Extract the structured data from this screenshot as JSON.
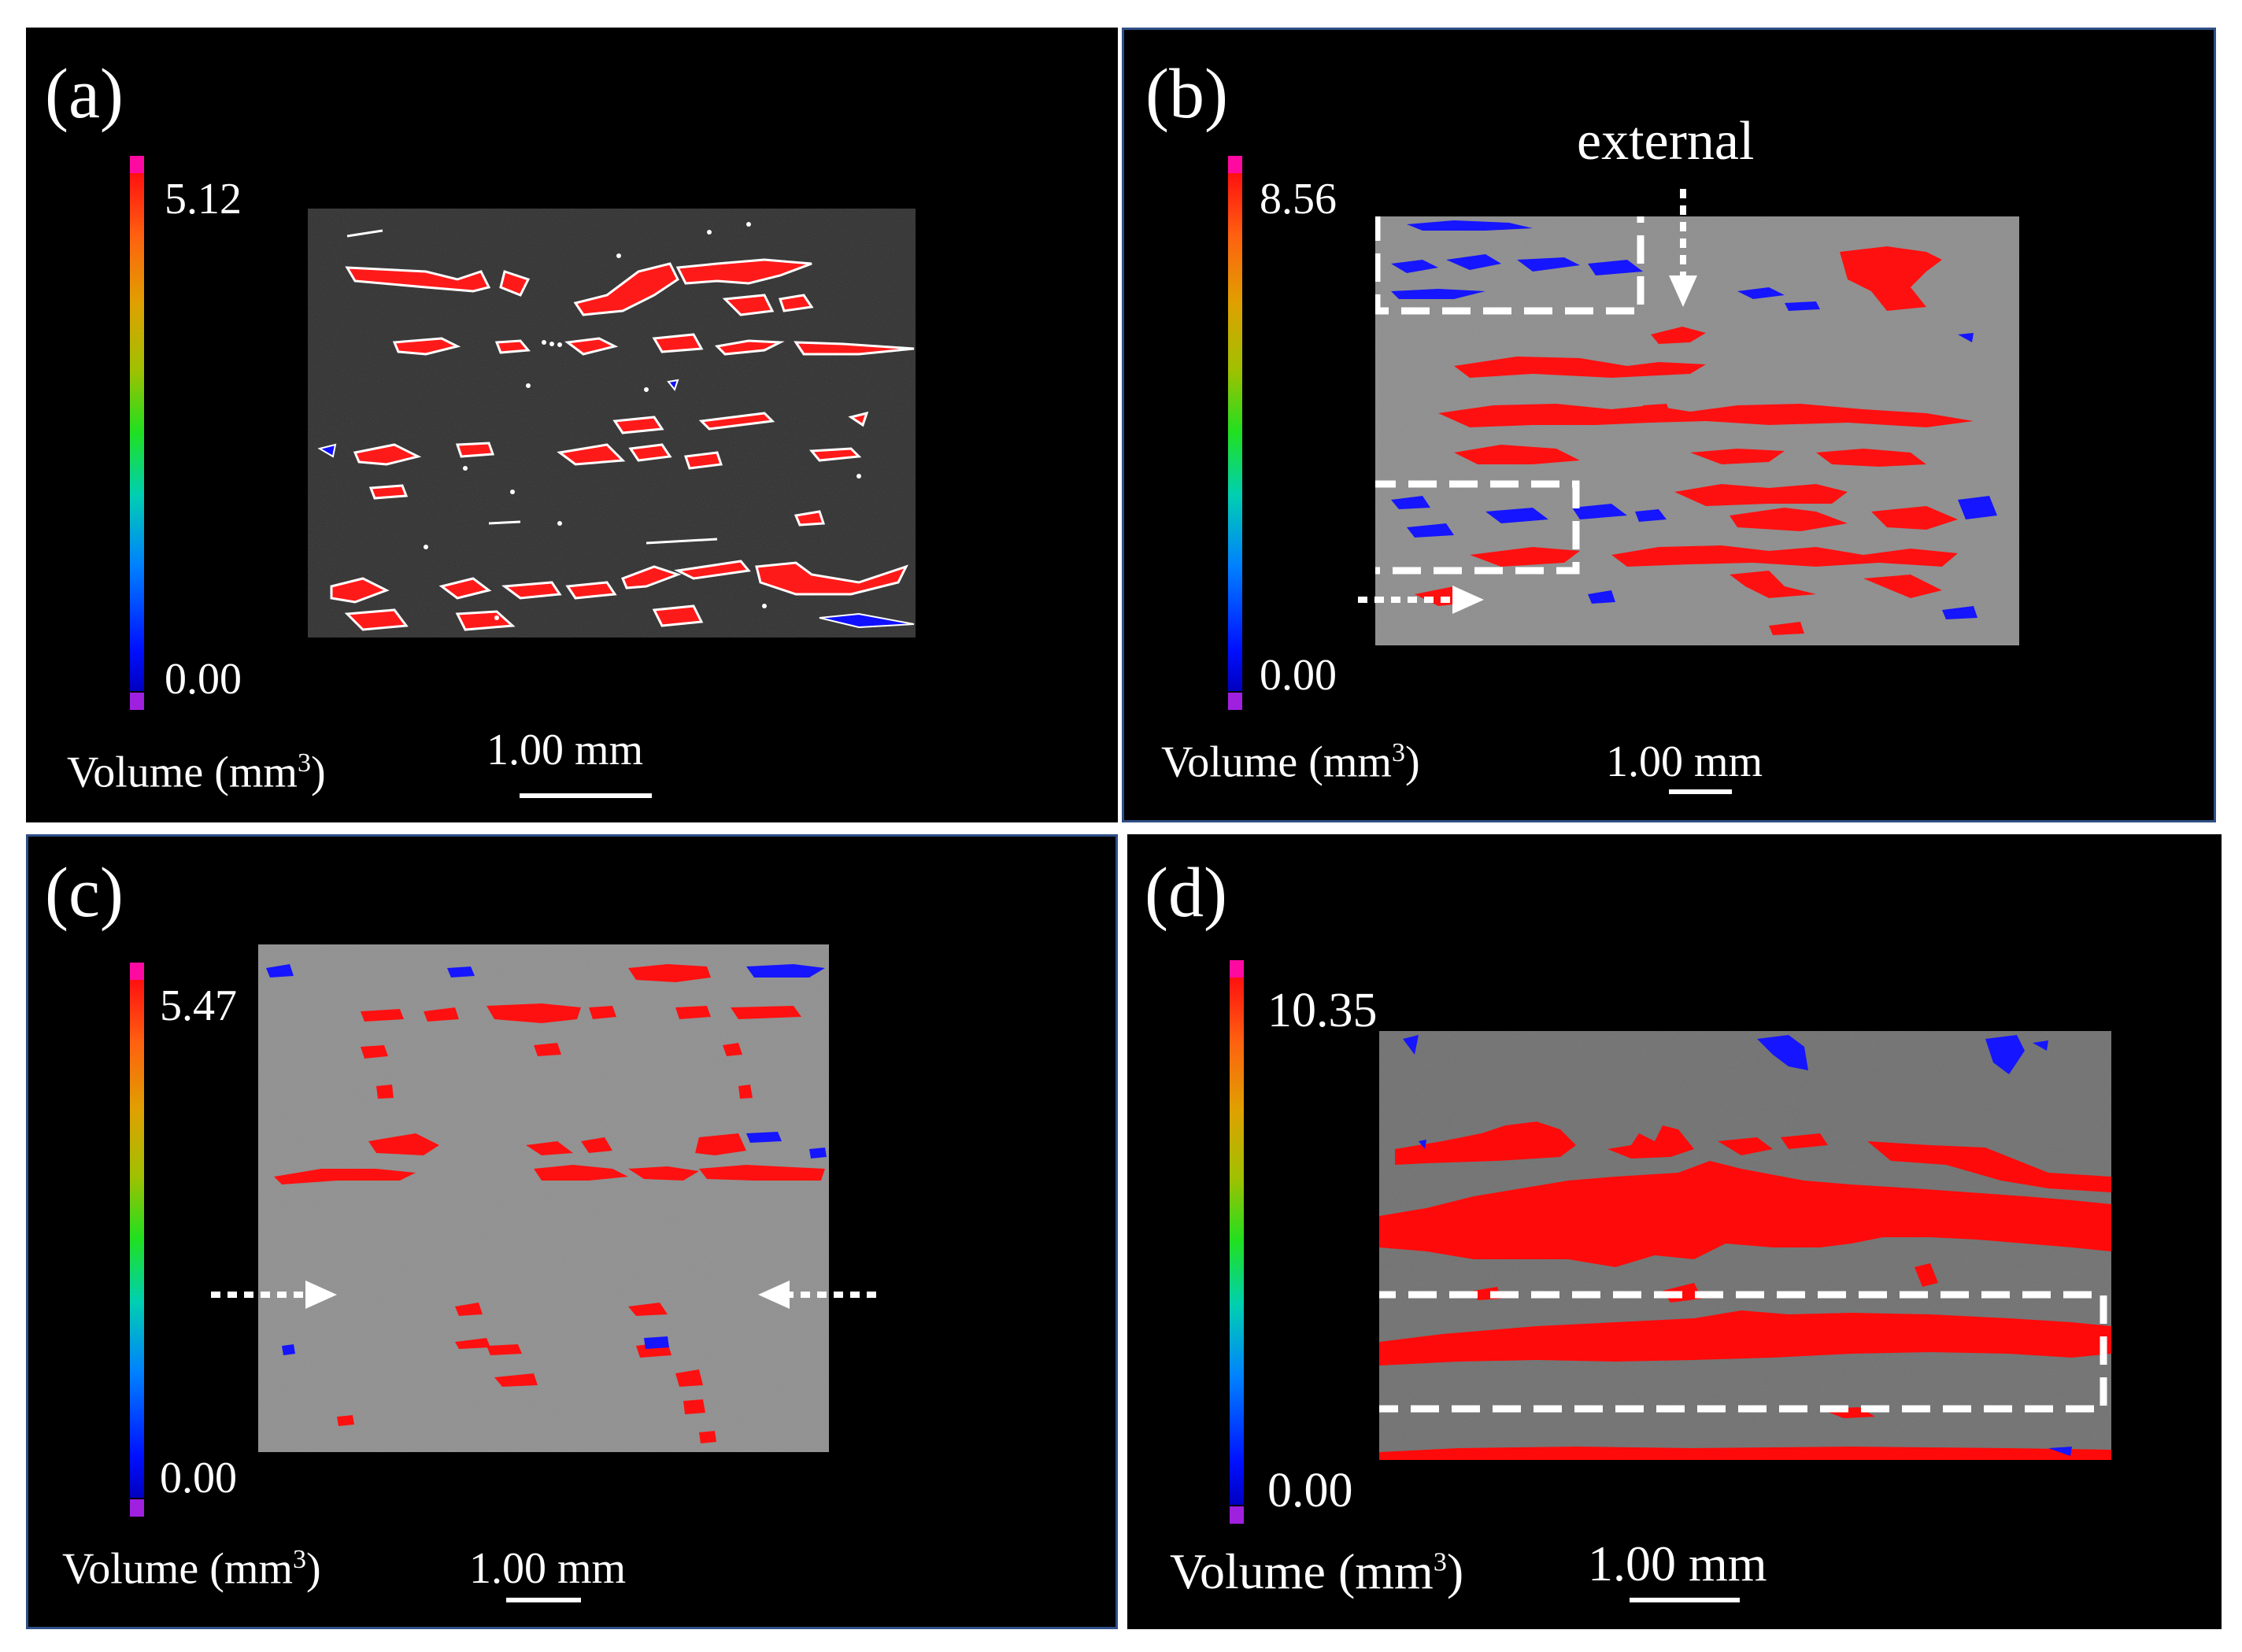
{
  "colors": {
    "pore": "#ff0000",
    "small_pore": "#0000ff",
    "outline": "#ffffff",
    "background": "#000000",
    "frame": "#2f4f86"
  },
  "panels": [
    {
      "label": "(a)",
      "cmax": "5.12",
      "cmin": "0.00",
      "volume_label": "Volume (mm",
      "volume_unit_exp": "3",
      "volume_label_end": ")",
      "scale": "1.00 mm"
    },
    {
      "label": "(b)",
      "cmax": "8.56",
      "cmin": "0.00",
      "volume_label": "Volume (mm",
      "volume_unit_exp": "3",
      "volume_label_end": ")",
      "scale": "1.00 mm",
      "annotation": "external"
    },
    {
      "label": "(c)",
      "cmax": "5.47",
      "cmin": "0.00",
      "volume_label": "Volume (mm",
      "volume_unit_exp": "3",
      "volume_label_end": ")",
      "scale": "1.00 mm"
    },
    {
      "label": "(d)",
      "cmax": "10.35",
      "cmin": "0.00",
      "volume_label": "Volume (mm",
      "volume_unit_exp": "3",
      "volume_label_end": ")",
      "scale": "1.00 mm"
    }
  ]
}
